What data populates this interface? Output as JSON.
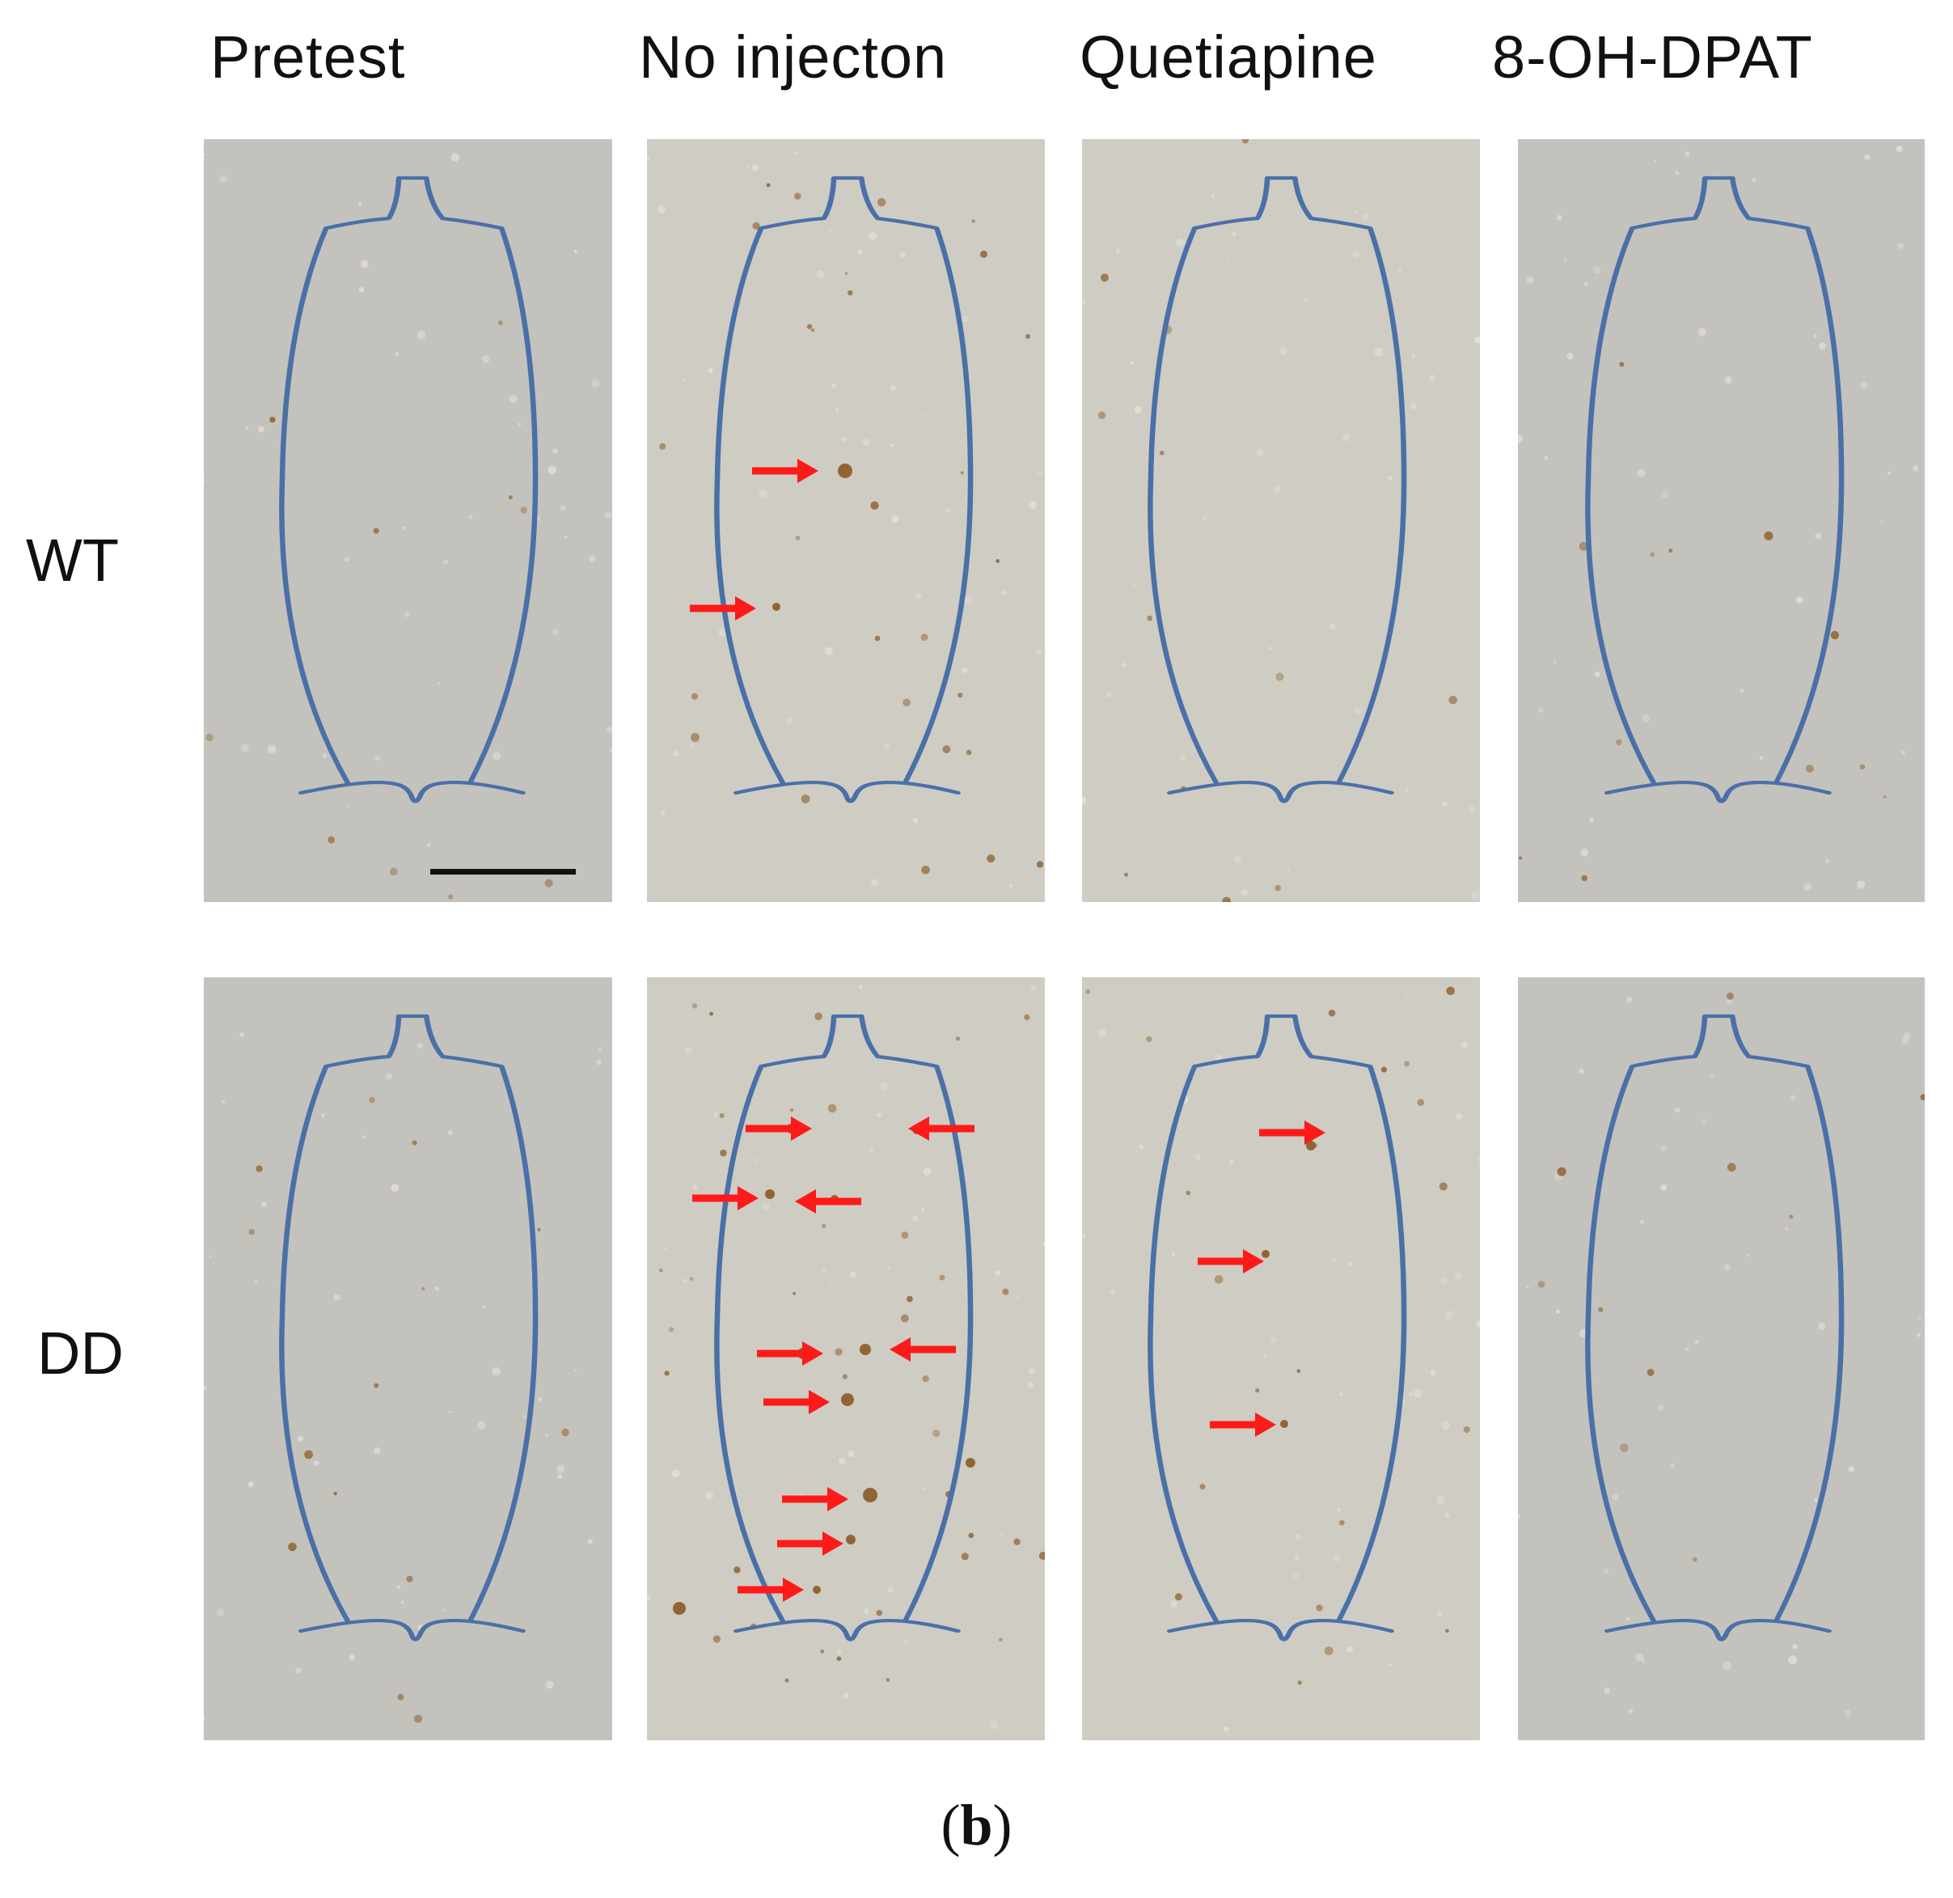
{
  "figure": {
    "columns": [
      "Pretest",
      "No injecton",
      "Quetiapine",
      "8-OH-DPAT"
    ],
    "rows": [
      "WT",
      "DD"
    ],
    "caption_open": "(",
    "caption_letter": "b",
    "caption_close": ")"
  },
  "colors": {
    "outline": "#4a70a8",
    "arrow": "#ff1a1a",
    "tissue_gray": "#c4c2bc",
    "tissue_light": "#cfccc4",
    "stain": "#8a5a22",
    "scale_bar": "#111111"
  }
}
